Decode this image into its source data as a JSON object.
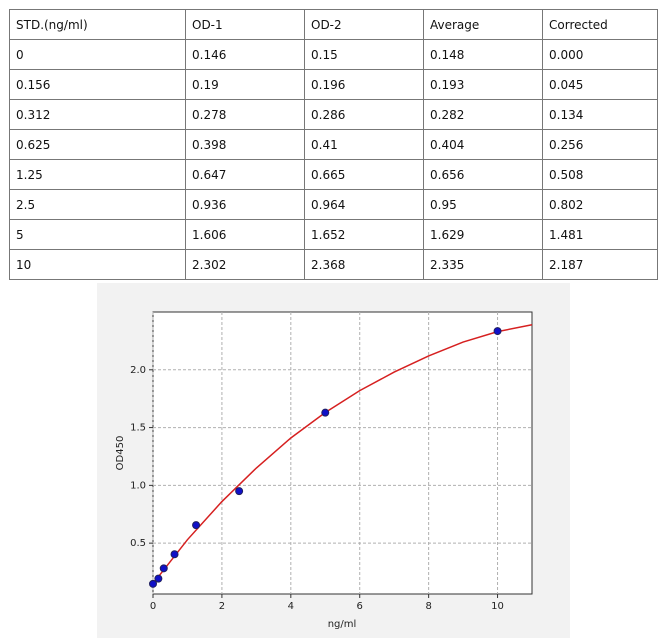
{
  "table": {
    "header": [
      "STD.(ng/ml)",
      "OD-1",
      "OD-2",
      "Average",
      "Corrected"
    ],
    "rows": [
      [
        "0",
        "0.146",
        "0.15",
        "0.148",
        "0.000"
      ],
      [
        "0.156",
        "0.19",
        "0.196",
        "0.193",
        "0.045"
      ],
      [
        "0.312",
        "0.278",
        "0.286",
        "0.282",
        "0.134"
      ],
      [
        "0.625",
        "0.398",
        "0.41",
        "0.404",
        "0.256"
      ],
      [
        "1.25",
        "0.647",
        "0.665",
        "0.656",
        "0.508"
      ],
      [
        "2.5",
        "0.936",
        "0.964",
        "0.95",
        "0.802"
      ],
      [
        "5",
        "1.606",
        "1.652",
        "1.629",
        "1.481"
      ],
      [
        "10",
        "2.302",
        "2.368",
        "2.335",
        "2.187"
      ]
    ]
  },
  "chart_data": {
    "type": "scatter",
    "xlabel": "ng/ml",
    "ylabel": "OD450",
    "xlim": [
      0,
      11
    ],
    "ylim": [
      0.06,
      2.5
    ],
    "xticks": [
      0,
      2,
      4,
      6,
      8,
      10
    ],
    "yticks": [
      0.5,
      {
        "value": 1,
        "label": "1.0"
      },
      1.5,
      {
        "value": 2,
        "label": "2.0"
      }
    ],
    "grid": true,
    "series": [
      {
        "style": "marker",
        "color": "#1010c8",
        "x": [
          0,
          0.156,
          0.312,
          0.625,
          1.25,
          2.5,
          5,
          10
        ],
        "values": [
          0.148,
          0.193,
          0.282,
          0.404,
          0.656,
          0.95,
          1.629,
          2.335
        ]
      },
      {
        "style": "line",
        "color": "#d62020",
        "x": [
          0,
          1,
          2,
          3,
          4,
          5,
          6,
          7,
          8,
          9,
          10,
          11
        ],
        "values": [
          0.15,
          0.53,
          0.86,
          1.15,
          1.41,
          1.63,
          1.82,
          1.98,
          2.12,
          2.24,
          2.33,
          2.39
        ]
      }
    ]
  }
}
